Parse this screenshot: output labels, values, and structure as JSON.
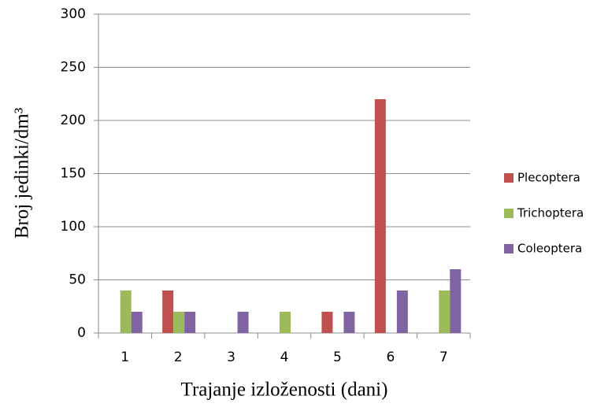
{
  "chart_data": {
    "type": "bar",
    "x_label": "Trajanje izloženosti (dani)",
    "y_label": "Broj jedinki/dm³",
    "categories": [
      "1",
      "2",
      "3",
      "4",
      "5",
      "6",
      "7"
    ],
    "series": [
      {
        "name": "Plecoptera",
        "color": "#c0504d",
        "values": [
          0,
          40,
          0,
          0,
          20,
          220,
          0
        ]
      },
      {
        "name": "Trichoptera",
        "color": "#9bbb59",
        "values": [
          40,
          20,
          0,
          20,
          0,
          0,
          40
        ]
      },
      {
        "name": "Coleoptera",
        "color": "#8064a2",
        "values": [
          20,
          20,
          20,
          0,
          20,
          40,
          60
        ]
      }
    ],
    "ylim": [
      0,
      300
    ],
    "yticks": [
      0,
      50,
      100,
      150,
      200,
      250,
      300
    ],
    "grid": true,
    "legend": "right"
  }
}
